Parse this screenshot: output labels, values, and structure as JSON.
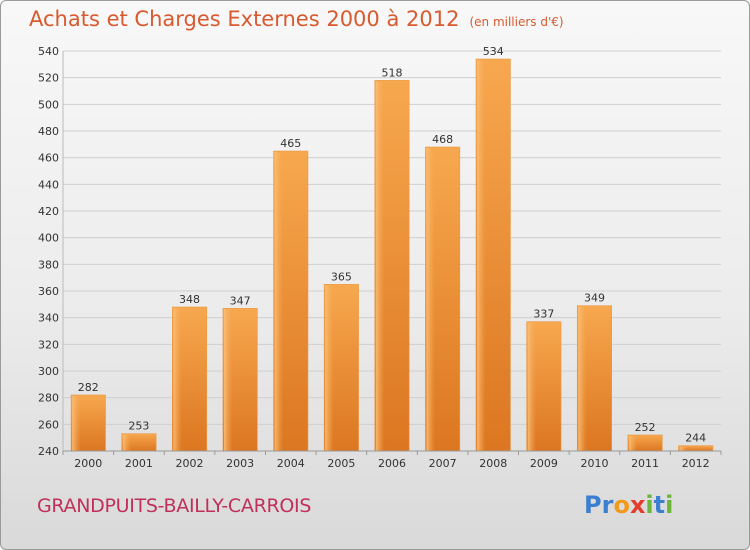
{
  "header": {
    "title": "Achats et Charges Externes 2000 à 2012",
    "subtitle": "(en milliers d'€)"
  },
  "footer": {
    "commune": "GRANDPUITS-BAILLY-CARROIS",
    "logo": "Proxiti"
  },
  "colors": {
    "title": "#d85a2f",
    "commune": "#c0305a",
    "bar_light": "#f5a04a",
    "bar_dark": "#d9721e"
  },
  "chart_data": {
    "type": "bar",
    "title": "Achats et Charges Externes 2000 à 2012",
    "subtitle": "(en milliers d'€)",
    "categories": [
      "2000",
      "2001",
      "2002",
      "2003",
      "2004",
      "2005",
      "2006",
      "2007",
      "2008",
      "2009",
      "2010",
      "2011",
      "2012"
    ],
    "values": [
      282,
      253,
      348,
      347,
      465,
      365,
      518,
      468,
      534,
      337,
      349,
      252,
      244
    ],
    "ylim": [
      240,
      540
    ],
    "yticks": [
      240,
      260,
      280,
      300,
      320,
      340,
      360,
      380,
      400,
      420,
      440,
      460,
      480,
      500,
      520,
      540
    ],
    "grid": true,
    "xlabel": "",
    "ylabel": ""
  }
}
